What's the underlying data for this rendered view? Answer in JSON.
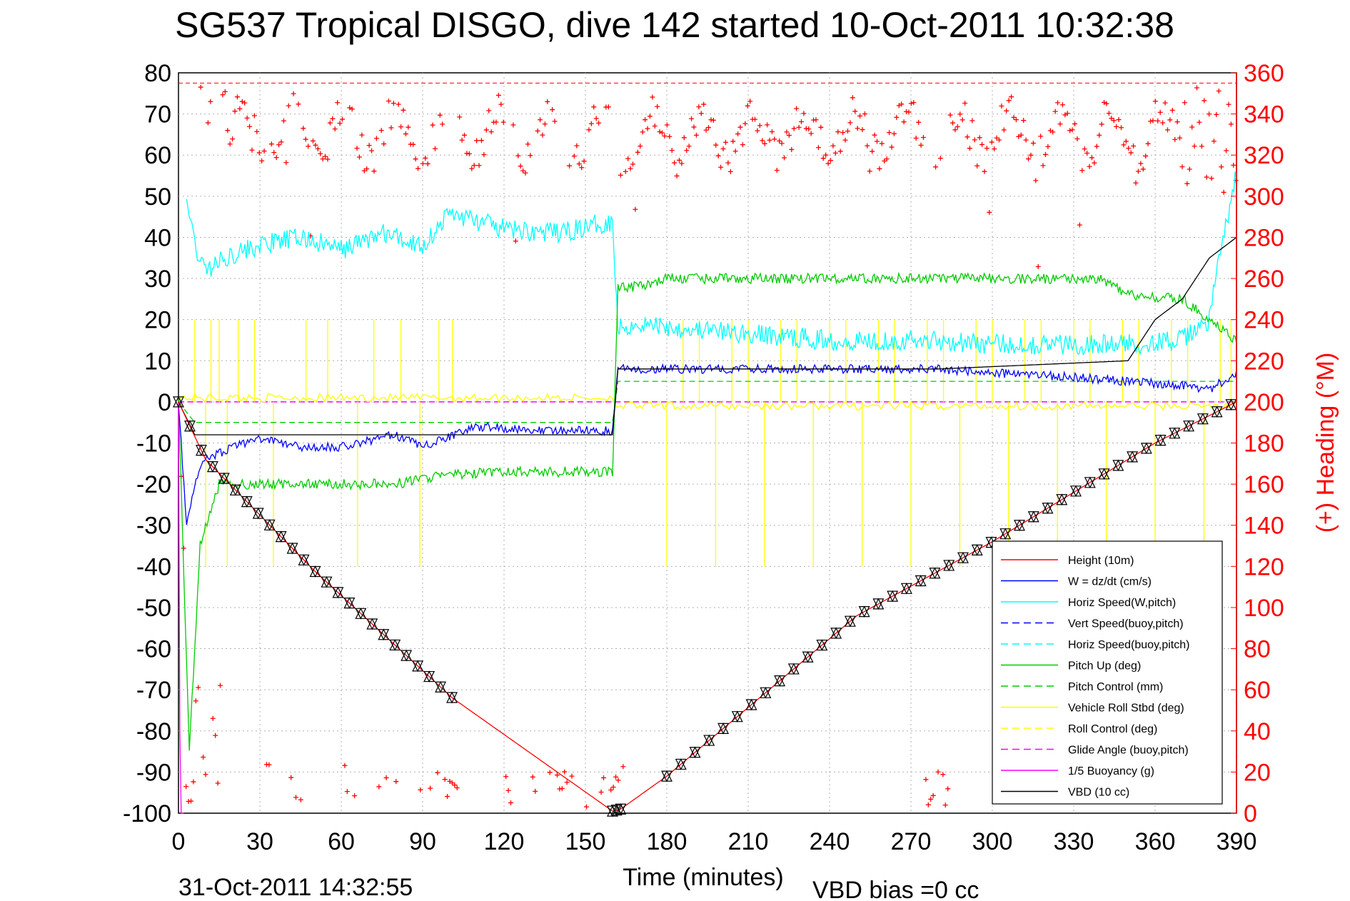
{
  "title": "SG537 Tropical DISGO, dive 142 started 10-Oct-2011 10:32:38",
  "footer": {
    "timestamp": "31-Oct-2011 14:32:55",
    "vbd_bias": "VBD bias =0 cc"
  },
  "chart_data": {
    "type": "line",
    "xlabel": "Time (minutes)",
    "ylabel": "",
    "y2label": "(+) Heading (°M)",
    "xlim": [
      0,
      390
    ],
    "ylim": [
      -100,
      80
    ],
    "y2lim": [
      0,
      360
    ],
    "x_ticks": [
      "0",
      "30",
      "60",
      "90",
      "120",
      "150",
      "180",
      "210",
      "240",
      "270",
      "300",
      "330",
      "360",
      "390"
    ],
    "y_ticks": [
      "80",
      "70",
      "60",
      "50",
      "40",
      "30",
      "20",
      "10",
      "0",
      "-10",
      "-20",
      "-30",
      "-40",
      "-50",
      "-60",
      "-70",
      "-80",
      "-90",
      "-100"
    ],
    "y2_ticks": [
      "360",
      "340",
      "320",
      "300",
      "280",
      "260",
      "240",
      "220",
      "200",
      "180",
      "160",
      "140",
      "120",
      "100",
      "80",
      "60",
      "40",
      "20",
      "0"
    ],
    "grid": true,
    "legend_position": "bottom-right",
    "colors": {
      "height": "#ff0000",
      "w": "#0000ff",
      "horiz_speed": "#00ffff",
      "pitch": "#00cc00",
      "roll": "#ffff00",
      "glide": "#ff00ff",
      "vbd": "#000000",
      "heading": "#ff0000",
      "triangles": "#000000"
    },
    "legend": [
      {
        "label": "Height (10m)",
        "color": "#ff0000",
        "dash": false
      },
      {
        "label": "W = dz/dt (cm/s)",
        "color": "#0000ff",
        "dash": false
      },
      {
        "label": "Horiz Speed(W,pitch)",
        "color": "#00ffff",
        "dash": false
      },
      {
        "label": "Vert Speed(buoy,pitch)",
        "color": "#0000ff",
        "dash": true
      },
      {
        "label": "Horiz Speed(buoy,pitch)",
        "color": "#00ffff",
        "dash": true
      },
      {
        "label": "Pitch Up (deg)",
        "color": "#00cc00",
        "dash": false
      },
      {
        "label": "Pitch Control (mm)",
        "color": "#00cc00",
        "dash": true
      },
      {
        "label": "Vehicle Roll Stbd (deg)",
        "color": "#ffff00",
        "dash": false
      },
      {
        "label": "Roll Control (deg)",
        "color": "#ffff00",
        "dash": true
      },
      {
        "label": "Glide Angle (buoy,pitch)",
        "color": "#ff00ff",
        "dash": true
      },
      {
        "label": "1/5 Buoyancy (g)",
        "color": "#ff00ff",
        "dash": false
      },
      {
        "label": "VBD (10 cc)",
        "color": "#000000",
        "dash": false
      }
    ],
    "series": [
      {
        "name": "Height (10m)",
        "x": [
          0,
          10,
          50,
          101,
          160,
          163,
          180,
          250,
          300,
          360,
          390
        ],
        "y": [
          0,
          -14,
          -41,
          -72,
          -99.5,
          -99,
          -91,
          -52,
          -34,
          -10,
          0
        ]
      },
      {
        "name": "W = dz/dt (cm/s)",
        "x": [
          0,
          3,
          6,
          10,
          20,
          30,
          45,
          60,
          80,
          90,
          110,
          140,
          160,
          162,
          170,
          200,
          240,
          280,
          300,
          330,
          350,
          370,
          380,
          390
        ],
        "y": [
          0,
          -30,
          -20,
          -14,
          -11,
          -9,
          -11,
          -11,
          -8,
          -11,
          -6,
          -7,
          -7,
          8,
          8,
          8,
          8,
          8,
          7,
          6,
          5,
          4,
          3,
          7
        ]
      },
      {
        "name": "Horiz Speed(W,pitch)",
        "x": [
          3,
          6,
          10,
          20,
          30,
          45,
          60,
          75,
          90,
          100,
          120,
          140,
          160,
          162,
          170,
          200,
          240,
          280,
          300,
          330,
          350,
          370,
          380,
          385,
          390
        ],
        "y": [
          50,
          38,
          32,
          36,
          38,
          40,
          37,
          41,
          38,
          46,
          42,
          41,
          44,
          18,
          19,
          17,
          15,
          15,
          14,
          14,
          14,
          15,
          20,
          40,
          55
        ]
      },
      {
        "name": "Pitch Up (deg)",
        "x": [
          0,
          4,
          8,
          15,
          20,
          40,
          60,
          80,
          95,
          120,
          160,
          162,
          170,
          180,
          220,
          260,
          300,
          340,
          350,
          370,
          390
        ],
        "y": [
          0,
          -85,
          -35,
          -20,
          -20,
          -20,
          -20,
          -20,
          -18,
          -17,
          -17,
          28,
          28,
          30,
          30,
          30,
          30,
          30,
          26,
          25,
          15
        ]
      },
      {
        "name": "Pitch Control (mm)",
        "x": [
          0,
          6,
          50,
          100,
          160,
          162,
          200,
          300,
          340,
          360,
          390
        ],
        "y": [
          0,
          -5,
          -5,
          -5,
          -5,
          5,
          5,
          5,
          5,
          5,
          5
        ]
      },
      {
        "name": "VBD (10 cc)",
        "x": [
          0,
          6,
          160,
          162,
          280,
          350,
          360,
          370,
          380,
          390
        ],
        "y": [
          0,
          -8,
          -8,
          8,
          8,
          10,
          20,
          25,
          35,
          40
        ]
      },
      {
        "name": "1/5 Buoyancy (g)",
        "x": [
          0,
          0.5,
          1,
          2
        ],
        "y": [
          0,
          -80,
          -100,
          -100
        ]
      }
    ]
  }
}
